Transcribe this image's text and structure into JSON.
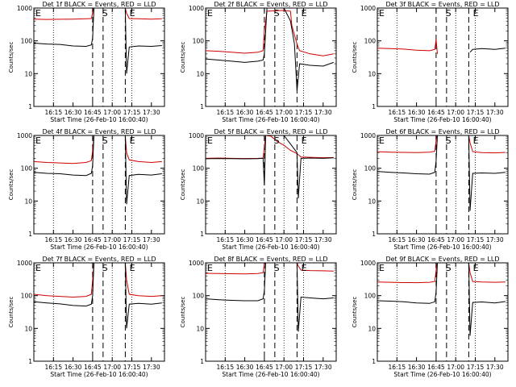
{
  "page": {
    "background": "#ffffff"
  },
  "colors": {
    "events": "#000000",
    "lld": "#d00000",
    "axis": "#000000"
  },
  "chart_data": [
    {
      "type": "line",
      "title": "Det 1f BLACK = Events, RED = LLD",
      "xlabel": "Start Time (26-Feb-10 16:00:40)",
      "ylabel": "Counts/sec",
      "yscale": "log",
      "ylim": [
        1,
        1000
      ],
      "xlim": [
        "16:00",
        "17:40"
      ],
      "xticks": [
        "16:15",
        "16:30",
        "16:45",
        "17:00",
        "17:15",
        "17:30"
      ],
      "yticks": [
        "1",
        "10",
        "100",
        "1000"
      ],
      "markers": [
        "E",
        "S",
        "E"
      ],
      "series": [
        {
          "x": [
            "16:00",
            "16:10",
            "16:20",
            "16:30",
            "16:40",
            "16:44",
            "16:45",
            "16:46",
            "17:10",
            "17:11",
            "17:13",
            "17:20",
            "17:30",
            "17:38"
          ],
          "values": [
            460,
            450,
            455,
            460,
            470,
            480,
            700,
            1000,
            1000,
            700,
            480,
            470,
            460,
            470
          ]
        },
        {
          "x": [
            "16:00",
            "16:10",
            "16:20",
            "16:30",
            "16:40",
            "16:44",
            "16:45",
            "16:46",
            "17:10",
            "17:11",
            "17:13",
            "17:20",
            "17:30",
            "17:38"
          ],
          "values": [
            85,
            80,
            78,
            70,
            68,
            75,
            120,
            1000,
            1000,
            10,
            65,
            70,
            68,
            72
          ]
        }
      ]
    },
    {
      "type": "line",
      "title": "Det 2f BLACK = Events, RED = LLD",
      "xlabel": "Start Time (26-Feb-10 16:00:40)",
      "ylabel": "Counts/sec",
      "yscale": "log",
      "ylim": [
        1,
        1000
      ],
      "xlim": [
        "16:00",
        "17:40"
      ],
      "xticks": [
        "16:15",
        "16:30",
        "16:45",
        "17:00",
        "17:15",
        "17:30"
      ],
      "yticks": [
        "1",
        "10",
        "100",
        "1000"
      ],
      "markers": [
        "E",
        "S",
        "E"
      ],
      "series": [
        {
          "x": [
            "16:00",
            "16:10",
            "16:20",
            "16:30",
            "16:40",
            "16:44",
            "16:45",
            "16:47",
            "17:00",
            "17:05",
            "17:06",
            "17:10",
            "17:12",
            "17:20",
            "17:30",
            "17:38"
          ],
          "values": [
            50,
            48,
            45,
            42,
            45,
            50,
            200,
            800,
            850,
            800,
            300,
            80,
            50,
            40,
            35,
            40
          ]
        },
        {
          "x": [
            "16:00",
            "16:10",
            "16:20",
            "16:30",
            "16:40",
            "16:44",
            "16:45",
            "16:47",
            "17:00",
            "17:05",
            "17:08",
            "17:10",
            "17:12",
            "17:20",
            "17:30",
            "17:38"
          ],
          "values": [
            28,
            26,
            24,
            22,
            24,
            26,
            40,
            1000,
            1000,
            400,
            80,
            3,
            20,
            18,
            17,
            22
          ]
        }
      ]
    },
    {
      "type": "line",
      "title": "Det 3f BLACK = Events, RED = LLD",
      "xlabel": "Start Time (26-Feb-10 16:00:40)",
      "ylabel": "Counts/sec",
      "yscale": "log",
      "ylim": [
        1,
        1000
      ],
      "xlim": [
        "16:00",
        "17:40"
      ],
      "xticks": [
        "16:15",
        "16:30",
        "16:45",
        "17:00",
        "17:15",
        "17:30"
      ],
      "yticks": [
        "1",
        "10",
        "100",
        "1000"
      ],
      "markers": [
        "E",
        "S",
        "E"
      ],
      "series": [
        {
          "x": [
            "16:00",
            "16:10",
            "16:20",
            "16:30",
            "16:40",
            "16:44",
            "16:45",
            "16:46"
          ],
          "values": [
            60,
            58,
            56,
            52,
            50,
            55,
            110,
            40
          ]
        },
        {
          "x": [
            "17:11",
            "17:13",
            "17:20",
            "17:30",
            "17:38"
          ],
          "values": [
            45,
            55,
            58,
            55,
            60
          ]
        }
      ]
    },
    {
      "type": "line",
      "title": "Det 4f BLACK = Events, RED = LLD",
      "xlabel": "Start Time (26-Feb-10 16:00:40)",
      "ylabel": "Counts/sec",
      "yscale": "log",
      "ylim": [
        1,
        1000
      ],
      "xlim": [
        "16:00",
        "17:40"
      ],
      "xticks": [
        "16:15",
        "16:30",
        "16:45",
        "17:00",
        "17:15",
        "17:30"
      ],
      "yticks": [
        "1",
        "10",
        "100",
        "1000"
      ],
      "markers": [
        "E",
        "S",
        "E"
      ],
      "series": [
        {
          "x": [
            "16:00",
            "16:10",
            "16:20",
            "16:30",
            "16:40",
            "16:44",
            "16:45",
            "16:46",
            "17:10",
            "17:11",
            "17:13",
            "17:20",
            "17:30",
            "17:38"
          ],
          "values": [
            160,
            150,
            145,
            140,
            150,
            170,
            350,
            1000,
            1000,
            300,
            180,
            160,
            150,
            160
          ]
        },
        {
          "x": [
            "16:00",
            "16:10",
            "16:20",
            "16:30",
            "16:40",
            "16:44",
            "16:45",
            "16:46",
            "17:10",
            "17:11",
            "17:13",
            "17:20",
            "17:30",
            "17:38"
          ],
          "values": [
            75,
            70,
            68,
            62,
            60,
            70,
            120,
            1000,
            1000,
            8,
            60,
            65,
            62,
            68
          ]
        }
      ]
    },
    {
      "type": "line",
      "title": "Det 5f BLACK = Events, RED = LLD",
      "xlabel": "Start Time (26-Feb-10 16:00:40)",
      "ylabel": "Counts/sec",
      "yscale": "log",
      "ylim": [
        1,
        1000
      ],
      "xlim": [
        "16:00",
        "17:40"
      ],
      "xticks": [
        "16:15",
        "16:30",
        "16:45",
        "17:00",
        "17:15",
        "17:30"
      ],
      "yticks": [
        "1",
        "10",
        "100",
        "1000"
      ],
      "markers": [
        "E",
        "S",
        "E"
      ],
      "series": [
        {
          "x": [
            "16:00",
            "16:10",
            "16:20",
            "16:30",
            "16:40",
            "16:44",
            "16:46",
            "16:50",
            "16:55",
            "17:00",
            "17:05",
            "17:10",
            "17:13",
            "17:20",
            "17:30",
            "17:38"
          ],
          "values": [
            200,
            205,
            200,
            198,
            200,
            205,
            1000,
            950,
            650,
            500,
            350,
            280,
            220,
            215,
            210,
            212
          ]
        },
        {
          "x": [
            "16:00",
            "16:10",
            "16:20",
            "16:30",
            "16:40",
            "16:44",
            "16:45",
            "16:46",
            "17:00",
            "17:10",
            "17:11",
            "17:13",
            "17:20",
            "17:30",
            "17:38"
          ],
          "values": [
            195,
            198,
            196,
            194,
            196,
            200,
            30,
            1000,
            1000,
            300,
            12,
            200,
            205,
            200,
            208
          ]
        }
      ]
    },
    {
      "type": "line",
      "title": "Det 6f BLACK = Events, RED = LLD",
      "xlabel": "Start Time (26-Feb-10 16:00:40)",
      "ylabel": "Counts/sec",
      "yscale": "log",
      "ylim": [
        1,
        1000
      ],
      "xlim": [
        "16:00",
        "17:40"
      ],
      "xticks": [
        "16:15",
        "16:30",
        "16:45",
        "17:00",
        "17:15",
        "17:30"
      ],
      "yticks": [
        "1",
        "10",
        "100",
        "1000"
      ],
      "markers": [
        "E",
        "S",
        "E"
      ],
      "series": [
        {
          "x": [
            "16:00",
            "16:10",
            "16:20",
            "16:30",
            "16:40",
            "16:44",
            "16:45",
            "16:46",
            "17:10",
            "17:11",
            "17:13",
            "17:20",
            "17:30",
            "17:38"
          ],
          "values": [
            320,
            310,
            305,
            300,
            310,
            330,
            700,
            1000,
            1000,
            600,
            320,
            300,
            295,
            305
          ]
        },
        {
          "x": [
            "16:00",
            "16:10",
            "16:20",
            "16:30",
            "16:40",
            "16:44",
            "16:45",
            "16:46",
            "17:10",
            "17:11",
            "17:13",
            "17:20",
            "17:30",
            "17:38"
          ],
          "values": [
            80,
            75,
            72,
            68,
            66,
            75,
            170,
            1000,
            1000,
            5,
            70,
            72,
            70,
            75
          ]
        }
      ]
    },
    {
      "type": "line",
      "title": "Det 7f BLACK = Events, RED = LLD",
      "xlabel": "Start Time (26-Feb-10 16:00:40)",
      "ylabel": "Counts/sec",
      "yscale": "log",
      "ylim": [
        1,
        1000
      ],
      "xlim": [
        "16:00",
        "17:40"
      ],
      "xticks": [
        "16:15",
        "16:30",
        "16:45",
        "17:00",
        "17:15",
        "17:30"
      ],
      "yticks": [
        "1",
        "10",
        "100",
        "1000"
      ],
      "markers": [
        "E",
        "S",
        "E"
      ],
      "series": [
        {
          "x": [
            "16:00",
            "16:10",
            "16:20",
            "16:30",
            "16:40",
            "16:44",
            "16:45",
            "16:46",
            "17:10",
            "17:11",
            "17:13",
            "17:20",
            "17:30",
            "17:38"
          ],
          "values": [
            110,
            100,
            95,
            90,
            95,
            110,
            300,
            1000,
            1000,
            300,
            110,
            100,
            95,
            100
          ]
        },
        {
          "x": [
            "16:00",
            "16:10",
            "16:20",
            "16:30",
            "16:40",
            "16:44",
            "16:45",
            "16:46",
            "17:10",
            "17:11",
            "17:13",
            "17:20",
            "17:30",
            "17:38"
          ],
          "values": [
            65,
            60,
            56,
            50,
            48,
            55,
            100,
            1000,
            1000,
            10,
            55,
            58,
            55,
            60
          ]
        }
      ]
    },
    {
      "type": "line",
      "title": "Det 8f BLACK = Events, RED = LLD",
      "xlabel": "Start Time (26-Feb-10 16:00:40)",
      "ylabel": "Counts/sec",
      "yscale": "log",
      "ylim": [
        1,
        1000
      ],
      "xlim": [
        "16:00",
        "17:40"
      ],
      "xticks": [
        "16:15",
        "16:30",
        "16:45",
        "17:00",
        "17:15",
        "17:30"
      ],
      "yticks": [
        "1",
        "10",
        "100",
        "1000"
      ],
      "markers": [
        "E",
        "S",
        "E"
      ],
      "series": [
        {
          "x": [
            "16:00",
            "16:10",
            "16:20",
            "16:30",
            "16:40",
            "16:44",
            "16:45",
            "16:46",
            "17:10",
            "17:11",
            "17:13",
            "17:20",
            "17:30",
            "17:38"
          ],
          "values": [
            480,
            470,
            465,
            460,
            470,
            500,
            900,
            1000,
            1000,
            800,
            600,
            580,
            570,
            560
          ]
        },
        {
          "x": [
            "16:00",
            "16:10",
            "16:20",
            "16:30",
            "16:40",
            "16:44",
            "16:45",
            "16:46",
            "17:10",
            "17:11",
            "17:13",
            "17:20",
            "17:30",
            "17:38"
          ],
          "values": [
            80,
            75,
            72,
            70,
            70,
            80,
            140,
            1000,
            1000,
            8,
            90,
            85,
            80,
            85
          ]
        }
      ]
    },
    {
      "type": "line",
      "title": "Det 9f BLACK = Events, RED = LLD",
      "xlabel": "Start Time (26-Feb-10 16:00:40)",
      "ylabel": "Counts/sec",
      "yscale": "log",
      "ylim": [
        1,
        1000
      ],
      "xlim": [
        "16:00",
        "17:40"
      ],
      "xticks": [
        "16:15",
        "16:30",
        "16:45",
        "17:00",
        "17:15",
        "17:30"
      ],
      "yticks": [
        "1",
        "10",
        "100",
        "1000"
      ],
      "markers": [
        "E",
        "S",
        "E"
      ],
      "series": [
        {
          "x": [
            "16:00",
            "16:10",
            "16:20",
            "16:30",
            "16:40",
            "16:44",
            "16:45",
            "16:46",
            "17:10",
            "17:11",
            "17:13",
            "17:20",
            "17:30",
            "17:38"
          ],
          "values": [
            260,
            255,
            250,
            248,
            255,
            270,
            600,
            1000,
            1000,
            500,
            270,
            260,
            255,
            260
          ]
        },
        {
          "x": [
            "16:00",
            "16:10",
            "16:20",
            "16:30",
            "16:40",
            "16:44",
            "16:45",
            "16:46",
            "17:10",
            "17:11",
            "17:13",
            "17:20",
            "17:30",
            "17:38"
          ],
          "values": [
            70,
            68,
            65,
            60,
            58,
            65,
            130,
            1000,
            1000,
            6,
            62,
            64,
            60,
            66
          ]
        }
      ]
    }
  ]
}
